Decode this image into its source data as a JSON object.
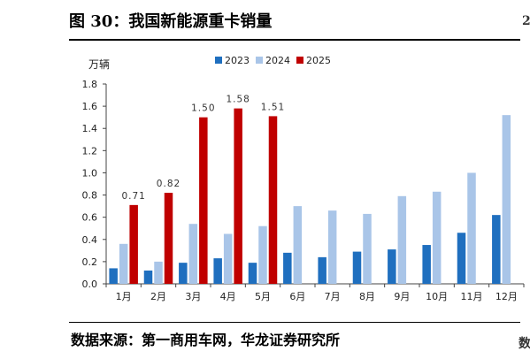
{
  "figure": {
    "title": "图 30：我国新能源重卡销量",
    "source": "数据来源：第一商用车网，华龙证券研究所",
    "right_edge_top": "2",
    "right_edge_bottom": "数"
  },
  "chart_data": {
    "type": "bar",
    "ylabel": "万辆",
    "ylim": [
      0,
      1.8
    ],
    "yticks": [
      "0.0",
      "0.2",
      "0.4",
      "0.6",
      "0.8",
      "1.0",
      "1.2",
      "1.4",
      "1.6",
      "1.8"
    ],
    "categories": [
      "1月",
      "2月",
      "3月",
      "4月",
      "5月",
      "6月",
      "7月",
      "8月",
      "9月",
      "10月",
      "11月",
      "12月"
    ],
    "legend_position": "top-right",
    "grid": false,
    "series": [
      {
        "name": "2023",
        "color": "#1f6fbf",
        "values": [
          0.14,
          0.12,
          0.19,
          0.23,
          0.19,
          0.28,
          0.24,
          0.29,
          0.31,
          0.35,
          0.46,
          0.62
        ]
      },
      {
        "name": "2024",
        "color": "#a9c5e8",
        "values": [
          0.36,
          0.2,
          0.54,
          0.45,
          0.52,
          0.7,
          0.66,
          0.63,
          0.79,
          0.83,
          1.0,
          1.52
        ]
      },
      {
        "name": "2025",
        "color": "#c00000",
        "values": [
          0.71,
          0.82,
          1.5,
          1.58,
          1.51,
          null,
          null,
          null,
          null,
          null,
          null,
          null
        ]
      }
    ],
    "data_labels": {
      "series": "2025",
      "labels": [
        "0.71",
        "0.82",
        "1.50",
        "1.58",
        "1.51"
      ]
    }
  }
}
